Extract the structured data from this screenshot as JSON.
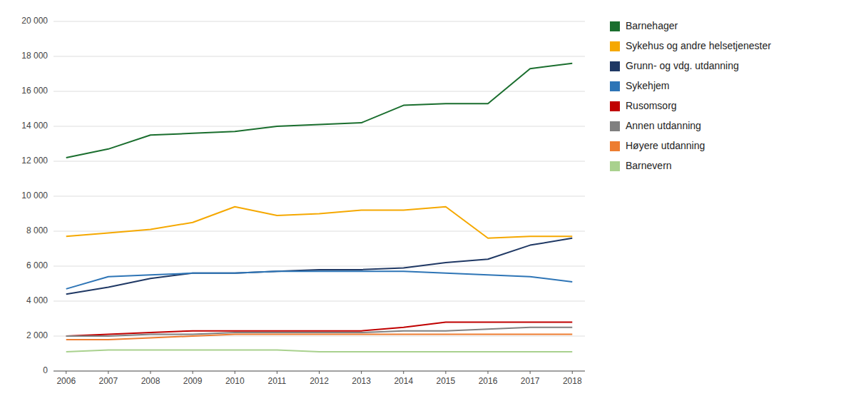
{
  "chart_data": {
    "type": "line",
    "x": [
      2006,
      2007,
      2008,
      2009,
      2010,
      2011,
      2012,
      2013,
      2014,
      2015,
      2016,
      2017,
      2018
    ],
    "xlim": [
      2005.7,
      2018.3
    ],
    "xticks": [
      2006,
      2007,
      2008,
      2009,
      2010,
      2011,
      2012,
      2013,
      2014,
      2015,
      2016,
      2017,
      2018
    ],
    "ylim": [
      0,
      20000
    ],
    "yticks": [
      0,
      {
        "value": 2000,
        "label": "2 000"
      },
      {
        "value": 4000,
        "label": "4 000"
      },
      {
        "value": 6000,
        "label": "6 000"
      },
      {
        "value": 8000,
        "label": "8 000"
      },
      {
        "value": 10000,
        "label": "10 000"
      },
      {
        "value": 12000,
        "label": "12 000"
      },
      {
        "value": 14000,
        "label": "14 000"
      },
      {
        "value": 16000,
        "label": "16 000"
      },
      {
        "value": 18000,
        "label": "18 000"
      },
      {
        "value": 20000,
        "label": "20 000"
      }
    ],
    "grid": true,
    "legend": "right",
    "series": [
      {
        "name": "Barnehager",
        "color": "#1a6e2e",
        "values": [
          12200,
          12700,
          13500,
          13600,
          13700,
          14000,
          14100,
          14200,
          15200,
          15300,
          15300,
          17300,
          17600
        ]
      },
      {
        "name": "Sykehus og andre helsetjenester",
        "color": "#f5a800",
        "values": [
          7700,
          7900,
          8100,
          8500,
          9400,
          8900,
          9000,
          9200,
          9200,
          9400,
          7600,
          7700,
          7700
        ]
      },
      {
        "name": "Grunn- og vdg. utdanning",
        "color": "#1f3864",
        "values": [
          4400,
          4800,
          5300,
          5600,
          5600,
          5700,
          5800,
          5800,
          5900,
          6200,
          6400,
          7200,
          7600
        ]
      },
      {
        "name": "Sykehjem",
        "color": "#2e75b6",
        "values": [
          4700,
          5400,
          5500,
          5600,
          5600,
          5700,
          5700,
          5700,
          5700,
          5600,
          5500,
          5400,
          5100
        ]
      },
      {
        "name": "Rusomsorg",
        "color": "#c00000",
        "values": [
          2000,
          2100,
          2200,
          2300,
          2300,
          2300,
          2300,
          2300,
          2500,
          2800,
          2800,
          2800,
          2800
        ]
      },
      {
        "name": "Annen utdanning",
        "color": "#808080",
        "values": [
          2000,
          2000,
          2100,
          2100,
          2200,
          2200,
          2200,
          2200,
          2300,
          2300,
          2400,
          2500,
          2500
        ]
      },
      {
        "name": "Høyere utdanning",
        "color": "#ed7d31",
        "values": [
          1800,
          1800,
          1900,
          2000,
          2100,
          2100,
          2100,
          2100,
          2100,
          2100,
          2100,
          2100,
          2100
        ]
      },
      {
        "name": "Barnevern",
        "color": "#a9d18e",
        "values": [
          1100,
          1200,
          1200,
          1200,
          1200,
          1200,
          1100,
          1100,
          1100,
          1100,
          1100,
          1100,
          1100
        ]
      }
    ]
  }
}
